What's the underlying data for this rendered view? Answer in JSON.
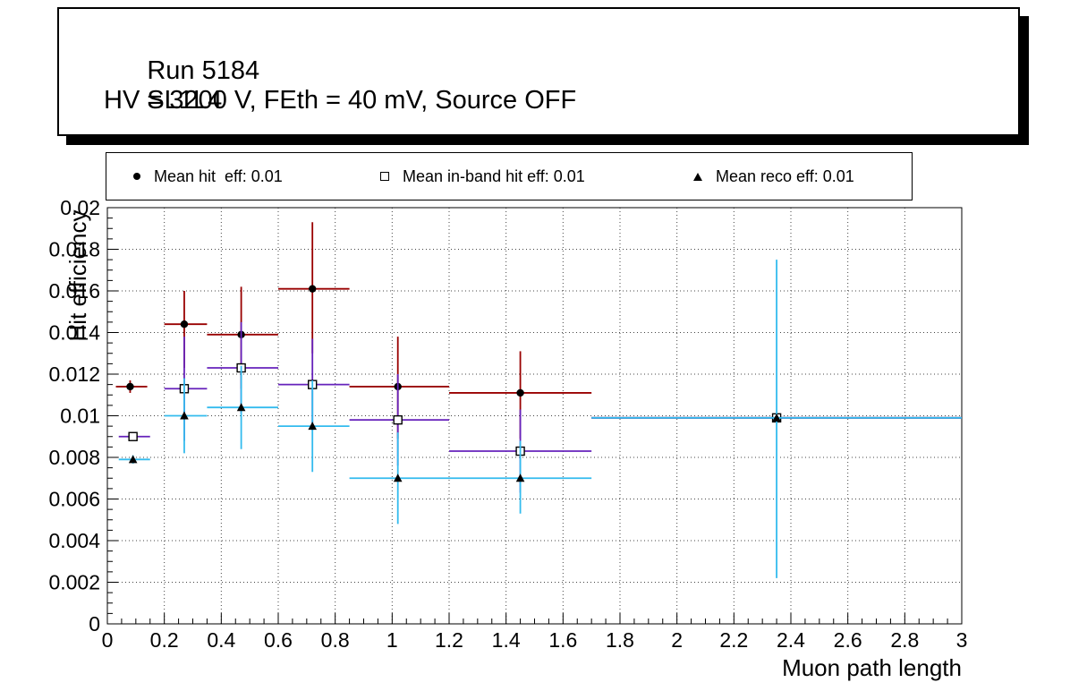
{
  "title_box": {
    "run": "Run 5184",
    "chamber": "SL1L4",
    "conditions": "HV = 3200 V, FEth = 40 mV, Source OFF"
  },
  "legend": {
    "entries": [
      {
        "marker": "filled-circle",
        "label": "Mean hit  eff: 0.01"
      },
      {
        "marker": "open-square",
        "label": "Mean in-band hit eff: 0.01"
      },
      {
        "marker": "filled-triangle",
        "label": "Mean reco eff: 0.01"
      }
    ]
  },
  "chart_data": {
    "type": "scatter",
    "title": "",
    "xlabel": "Muon path length",
    "ylabel": "Hit efficiency",
    "xlim": [
      0,
      3
    ],
    "ylim": [
      0,
      0.02
    ],
    "grid": "dotted",
    "legend_position": "top",
    "xticks": [
      0,
      0.2,
      0.4,
      0.6,
      0.8,
      1,
      1.2,
      1.4,
      1.6,
      1.8,
      2,
      2.2,
      2.4,
      2.6,
      2.8,
      3
    ],
    "xtick_labels": [
      "0",
      "0.2",
      "0.4",
      "0.6",
      "0.8",
      "1",
      "1.2",
      "1.4",
      "1.6",
      "1.8",
      "2",
      "2.2",
      "2.4",
      "2.6",
      "2.8",
      "3"
    ],
    "yticks": [
      0,
      0.002,
      0.004,
      0.006,
      0.008,
      0.01,
      0.012,
      0.014,
      0.016,
      0.018,
      0.02
    ],
    "ytick_labels": [
      "0",
      "0.002",
      "0.004",
      "0.006",
      "0.008",
      "0.01",
      "0.012",
      "0.014",
      "0.016",
      "0.018",
      "0.02"
    ],
    "series": [
      {
        "id": "hit-eff",
        "name": "Mean hit eff",
        "mean": 0.01,
        "color": "#990000",
        "marker": "filled-circle",
        "marker_color": "#000000",
        "points": [
          {
            "x": 0.08,
            "y": 0.0114,
            "xlo": 0.03,
            "xhi": 0.14,
            "ylo": 0.0111,
            "yhi": 0.0117
          },
          {
            "x": 0.27,
            "y": 0.0144,
            "xlo": 0.2,
            "xhi": 0.35,
            "ylo": 0.0123,
            "yhi": 0.016
          },
          {
            "x": 0.47,
            "y": 0.0139,
            "xlo": 0.35,
            "xhi": 0.6,
            "ylo": 0.0113,
            "yhi": 0.0162
          },
          {
            "x": 0.72,
            "y": 0.0161,
            "xlo": 0.6,
            "xhi": 0.85,
            "ylo": 0.013,
            "yhi": 0.0193
          },
          {
            "x": 1.02,
            "y": 0.0114,
            "xlo": 0.85,
            "xhi": 1.2,
            "ylo": 0.0089,
            "yhi": 0.0138
          },
          {
            "x": 1.45,
            "y": 0.0111,
            "xlo": 1.2,
            "xhi": 1.7,
            "ylo": 0.0089,
            "yhi": 0.0131
          },
          {
            "x": 2.35,
            "y": 0.0099,
            "xlo": 1.7,
            "xhi": 3.0,
            "ylo": 0.0097,
            "yhi": 0.0101
          }
        ]
      },
      {
        "id": "in-band-hit-eff",
        "name": "Mean in-band hit eff",
        "mean": 0.01,
        "color": "#6622bb",
        "marker": "open-square",
        "marker_color": "#000000",
        "points": [
          {
            "x": 0.09,
            "y": 0.009,
            "xlo": 0.04,
            "xhi": 0.15,
            "ylo": 0.0088,
            "yhi": 0.0092
          },
          {
            "x": 0.27,
            "y": 0.0113,
            "xlo": 0.2,
            "xhi": 0.35,
            "ylo": 0.0088,
            "yhi": 0.0138
          },
          {
            "x": 0.47,
            "y": 0.0123,
            "xlo": 0.35,
            "xhi": 0.6,
            "ylo": 0.0101,
            "yhi": 0.0145
          },
          {
            "x": 0.72,
            "y": 0.0115,
            "xlo": 0.6,
            "xhi": 0.85,
            "ylo": 0.0093,
            "yhi": 0.0137
          },
          {
            "x": 1.02,
            "y": 0.0098,
            "xlo": 0.85,
            "xhi": 1.2,
            "ylo": 0.0076,
            "yhi": 0.012
          },
          {
            "x": 1.45,
            "y": 0.0083,
            "xlo": 1.2,
            "xhi": 1.7,
            "ylo": 0.0063,
            "yhi": 0.0103
          },
          {
            "x": 2.35,
            "y": 0.0099,
            "xlo": 1.7,
            "xhi": 3.0,
            "ylo": 0.0097,
            "yhi": 0.0101
          }
        ]
      },
      {
        "id": "reco-eff",
        "name": "Mean reco eff",
        "mean": 0.01,
        "color": "#33bbee",
        "marker": "filled-triangle",
        "marker_color": "#000000",
        "points": [
          {
            "x": 0.09,
            "y": 0.0079,
            "xlo": 0.04,
            "xhi": 0.15,
            "ylo": 0.0077,
            "yhi": 0.0081
          },
          {
            "x": 0.27,
            "y": 0.01,
            "xlo": 0.2,
            "xhi": 0.35,
            "ylo": 0.0082,
            "yhi": 0.0118
          },
          {
            "x": 0.47,
            "y": 0.0104,
            "xlo": 0.35,
            "xhi": 0.6,
            "ylo": 0.0084,
            "yhi": 0.0124
          },
          {
            "x": 0.72,
            "y": 0.0095,
            "xlo": 0.6,
            "xhi": 0.85,
            "ylo": 0.0073,
            "yhi": 0.0117
          },
          {
            "x": 1.02,
            "y": 0.007,
            "xlo": 0.85,
            "xhi": 1.2,
            "ylo": 0.0048,
            "yhi": 0.0092
          },
          {
            "x": 1.45,
            "y": 0.007,
            "xlo": 1.2,
            "xhi": 1.7,
            "ylo": 0.0053,
            "yhi": 0.0088
          },
          {
            "x": 2.35,
            "y": 0.0099,
            "xlo": 1.7,
            "xhi": 3.0,
            "ylo": 0.0022,
            "yhi": 0.0175
          }
        ]
      }
    ]
  }
}
